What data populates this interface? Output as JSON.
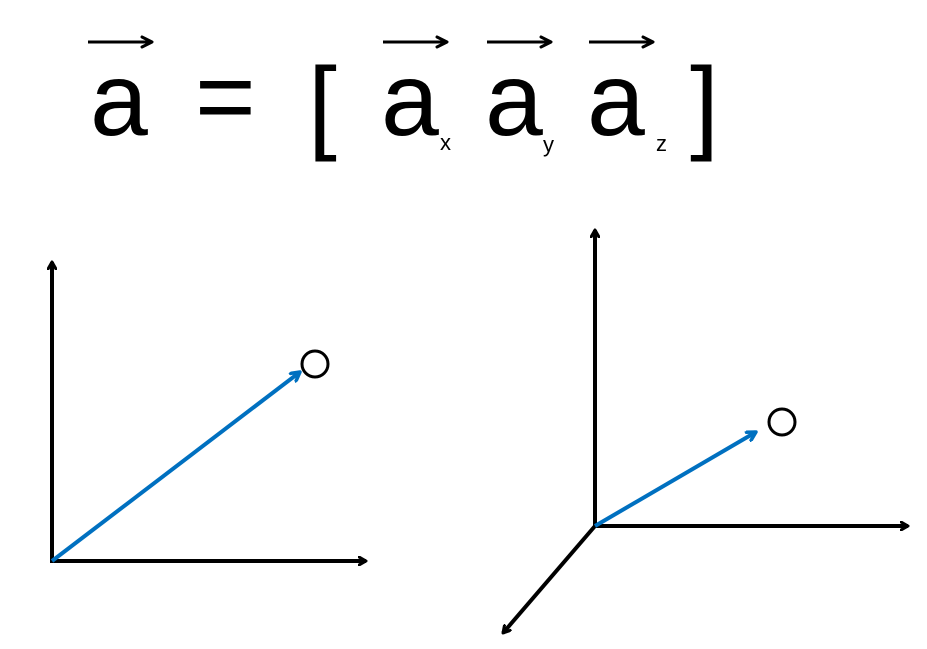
{
  "equation": {
    "lhs": "a",
    "equals": "=",
    "open_bracket": "[",
    "close_bracket": "]",
    "components": [
      {
        "letter": "a",
        "subscript": "x"
      },
      {
        "letter": "a",
        "subscript": "y"
      },
      {
        "letter": "a",
        "subscript": "z"
      }
    ]
  },
  "diagrams": {
    "two_d": {
      "label": "2D coordinate system with vector"
    },
    "three_d": {
      "label": "3D coordinate system with vector"
    }
  },
  "colors": {
    "axis": "#000000",
    "vector": "#0070C0",
    "endpoint": "#000000"
  }
}
